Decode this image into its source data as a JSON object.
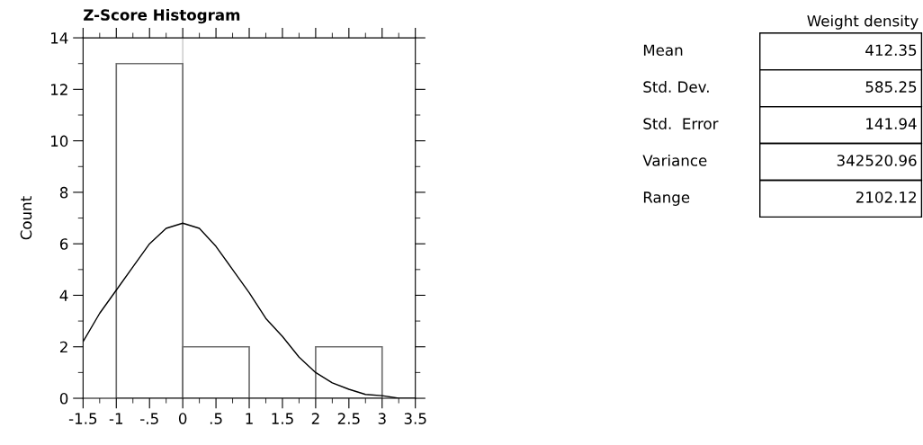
{
  "chart_data": [
    {
      "type": "histogram",
      "title": "Z-Score Histogram",
      "ylabel": "Count",
      "bins": [
        -1,
        0,
        1,
        2,
        3
      ],
      "values": [
        13,
        2,
        0,
        2
      ],
      "color": "#6e6e6e",
      "series": [
        {
          "type": "line",
          "color": "#000000",
          "x": [
            -1.5,
            -1.25,
            -1,
            -0.75,
            -0.5,
            -0.25,
            0,
            0.25,
            0.5,
            0.75,
            1,
            1.25,
            1.5,
            1.75,
            2,
            2.25,
            2.5,
            2.75,
            3,
            3.25,
            3.5
          ],
          "values": [
            2.2,
            3.3,
            4.2,
            5.1,
            6.0,
            6.6,
            6.8,
            6.6,
            5.9,
            5.0,
            4.1,
            3.1,
            2.4,
            1.6,
            1.0,
            0.6,
            0.35,
            0.15,
            0.1,
            0.0,
            0.0
          ]
        }
      ],
      "ref_lines": [
        {
          "axis": "x",
          "value": 0,
          "color": "#c8c8c8"
        }
      ],
      "xlim": [
        -1.5,
        3.5
      ],
      "xticks": [
        {
          "value": -1.5,
          "label": "-1.5"
        },
        {
          "value": -1,
          "label": "-1"
        },
        {
          "value": -0.5,
          "label": "-.5"
        },
        {
          "value": 0,
          "label": "0"
        },
        {
          "value": 0.5,
          "label": ".5"
        },
        {
          "value": 1,
          "label": "1"
        },
        {
          "value": 1.5,
          "label": "1.5"
        },
        {
          "value": 2,
          "label": "2"
        },
        {
          "value": 2.5,
          "label": "2.5"
        },
        {
          "value": 3,
          "label": "3"
        },
        {
          "value": 3.5,
          "label": "3.5"
        }
      ],
      "ylim": [
        0,
        14
      ],
      "yticks": [
        0,
        2,
        4,
        6,
        8,
        10,
        12,
        14
      ],
      "grid": false
    },
    {
      "type": "other",
      "title": "Weight density",
      "categories": [
        "Mean",
        "Std. Dev.",
        "Std.  Error",
        "Variance",
        "Range"
      ],
      "values": [
        412.35,
        585.25,
        141.94,
        342520.96,
        2102.12
      ],
      "value_labels": [
        "412.35",
        "585.25",
        "141.94",
        "342520.96",
        "2102.12"
      ]
    }
  ]
}
